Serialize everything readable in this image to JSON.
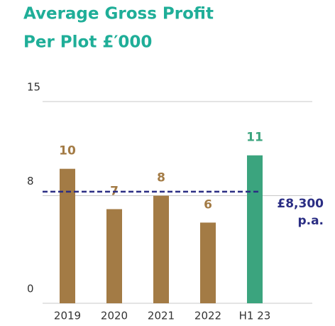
{
  "chart_data": {
    "type": "bar",
    "title": [
      "Average Gross Profit",
      "Per Plot £′000"
    ],
    "categories": [
      "2019",
      "2020",
      "2021",
      "2022",
      "H1 23"
    ],
    "values": [
      10,
      7,
      8,
      6,
      11
    ],
    "colors": [
      "#a37b45",
      "#a37b45",
      "#a37b45",
      "#a37b45",
      "#3ba47e"
    ],
    "ylim": [
      0,
      15
    ],
    "yticks": [
      0,
      8,
      15
    ],
    "grid": true,
    "reference": {
      "value": 8.3,
      "color": "#2b2e84",
      "label": [
        "£8,300",
        "p.a."
      ]
    }
  }
}
